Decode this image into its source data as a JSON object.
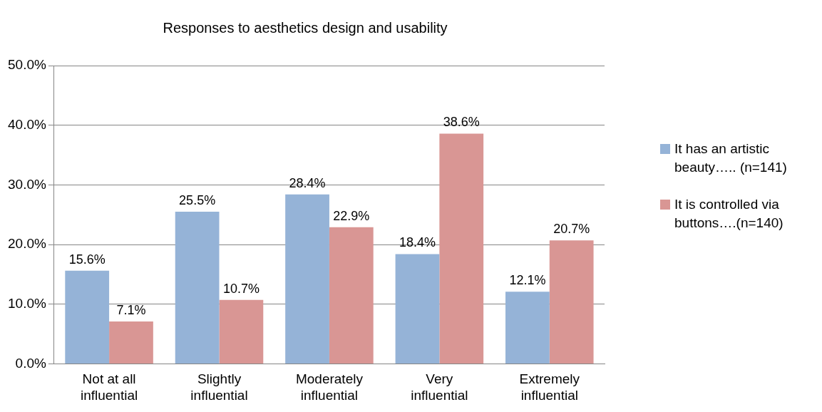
{
  "chart_data": {
    "type": "bar",
    "title": "Responses to aesthetics design and usability",
    "categories": [
      "Not at all influential",
      "Slightly influential",
      "Moderately influential",
      "Very influential",
      "Extremely influential"
    ],
    "series": [
      {
        "name": "It has an artistic beauty…..  (n=141)",
        "color": "#95b3d7",
        "values": [
          15.6,
          25.5,
          28.4,
          18.4,
          12.1
        ],
        "value_labels": [
          "15.6%",
          "25.5%",
          "28.4%",
          "18.4%",
          "12.1%"
        ]
      },
      {
        "name": "It is controlled via buttons….(n=140)",
        "color": "#d99694",
        "values": [
          7.1,
          10.7,
          22.9,
          38.6,
          20.7
        ],
        "value_labels": [
          "7.1%",
          "10.7%",
          "22.9%",
          "38.6%",
          "20.7%"
        ]
      }
    ],
    "ylim": [
      0,
      50
    ],
    "yticks": [
      {
        "value": 0,
        "label": "0.0%"
      },
      {
        "value": 10,
        "label": "10.0%"
      },
      {
        "value": 20,
        "label": "20.0%"
      },
      {
        "value": 30,
        "label": "30.0%"
      },
      {
        "value": 40,
        "label": "40.0%"
      },
      {
        "value": 50,
        "label": "50.0%"
      }
    ],
    "grid": "y",
    "legend": "right"
  }
}
